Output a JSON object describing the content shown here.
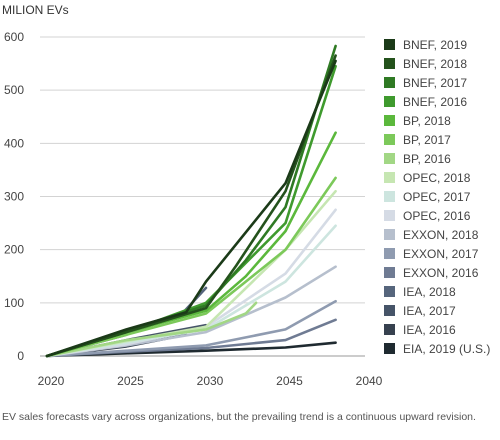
{
  "chart_data": {
    "type": "line",
    "ylabel": "MILION EVs",
    "xlabel": "",
    "title": "",
    "x_categories": [
      "2020",
      "2025",
      "2030",
      "2045",
      "2040"
    ],
    "ylim": [
      0,
      600
    ],
    "yticks": [
      0,
      100,
      200,
      300,
      400,
      500,
      600
    ],
    "grid": "horizontal",
    "legend_position": "right",
    "series": [
      {
        "name": "BNEF, 2019",
        "color": "#1b3a18",
        "points": [
          [
            0,
            0
          ],
          [
            1,
            50
          ],
          [
            1.75,
            82
          ],
          [
            2,
            140
          ],
          [
            3,
            325
          ],
          [
            3.63,
            555
          ]
        ]
      },
      {
        "name": "BNEF, 2018",
        "color": "#24521c",
        "points": [
          [
            0,
            0
          ],
          [
            1,
            45
          ],
          [
            2,
            90
          ],
          [
            2.38,
            170
          ],
          [
            3,
            310
          ],
          [
            3.63,
            565
          ]
        ]
      },
      {
        "name": "BNEF, 2017",
        "color": "#2f7a24",
        "points": [
          [
            0,
            0
          ],
          [
            1,
            48
          ],
          [
            2,
            95
          ],
          [
            2.5,
            180
          ],
          [
            3,
            280
          ],
          [
            3.63,
            583
          ]
        ]
      },
      {
        "name": "BNEF, 2016",
        "color": "#3f9a2e",
        "points": [
          [
            0,
            0
          ],
          [
            1,
            45
          ],
          [
            2,
            100
          ],
          [
            3,
            250
          ],
          [
            3.63,
            545
          ]
        ]
      },
      {
        "name": "BP, 2018",
        "color": "#5bb83c",
        "points": [
          [
            0,
            0
          ],
          [
            1,
            45
          ],
          [
            2,
            85
          ],
          [
            2.5,
            150
          ],
          [
            3,
            235
          ],
          [
            3.63,
            420
          ]
        ]
      },
      {
        "name": "BP, 2017",
        "color": "#7cc95a",
        "points": [
          [
            0,
            0
          ],
          [
            1,
            40
          ],
          [
            2,
            80
          ],
          [
            2.5,
            140
          ],
          [
            3,
            200
          ],
          [
            3.63,
            335
          ]
        ]
      },
      {
        "name": "BP, 2016",
        "color": "#a2d785",
        "points": [
          [
            0,
            0
          ],
          [
            1,
            30
          ],
          [
            2,
            50
          ],
          [
            2.5,
            80
          ],
          [
            2.63,
            100
          ]
        ]
      },
      {
        "name": "OPEC, 2018",
        "color": "#c6e6b2",
        "points": [
          [
            0,
            0
          ],
          [
            1,
            28
          ],
          [
            2,
            55
          ],
          [
            3,
            200
          ],
          [
            3.63,
            310
          ]
        ]
      },
      {
        "name": "OPEC, 2017",
        "color": "#cde5df",
        "points": [
          [
            0,
            0
          ],
          [
            1,
            25
          ],
          [
            2,
            50
          ],
          [
            3,
            140
          ],
          [
            3.63,
            245
          ]
        ]
      },
      {
        "name": "OPEC, 2016",
        "color": "#d5dbe5",
        "points": [
          [
            0,
            0
          ],
          [
            1,
            22
          ],
          [
            2,
            55
          ],
          [
            3,
            155
          ],
          [
            3.63,
            275
          ]
        ]
      },
      {
        "name": "EXXON, 2018",
        "color": "#b6bfcd",
        "points": [
          [
            0,
            0
          ],
          [
            1,
            20
          ],
          [
            2,
            45
          ],
          [
            3,
            110
          ],
          [
            3.63,
            168
          ]
        ]
      },
      {
        "name": "EXXON, 2017",
        "color": "#8f9bb0",
        "points": [
          [
            0,
            0
          ],
          [
            1,
            10
          ],
          [
            2,
            20
          ],
          [
            3,
            50
          ],
          [
            3.63,
            103
          ]
        ]
      },
      {
        "name": "EXXON, 2016",
        "color": "#6f7b93",
        "points": [
          [
            0,
            0
          ],
          [
            1,
            8
          ],
          [
            2,
            15
          ],
          [
            3,
            30
          ],
          [
            3.63,
            68
          ]
        ]
      },
      {
        "name": "IEA, 2018",
        "color": "#56657c",
        "points": [
          [
            0,
            0
          ],
          [
            1,
            40
          ],
          [
            1.7,
            80
          ],
          [
            2,
            128
          ]
        ]
      },
      {
        "name": "IEA, 2017",
        "color": "#465468",
        "points": [
          [
            0,
            0
          ],
          [
            1,
            30
          ],
          [
            2,
            58
          ]
        ]
      },
      {
        "name": "IEA, 2016",
        "color": "#37414f",
        "points": [
          [
            0,
            0
          ],
          [
            1,
            18
          ],
          [
            1.75,
            40
          ]
        ]
      },
      {
        "name": "EIA, 2019 (U.S.)",
        "color": "#1f2a30",
        "points": [
          [
            0,
            0
          ],
          [
            1,
            5
          ],
          [
            2,
            10
          ],
          [
            3,
            16
          ],
          [
            3.63,
            25
          ]
        ]
      }
    ]
  },
  "caption": "EV sales forecasts vary across organizations, but the prevailing trend is a continuous upward revision."
}
